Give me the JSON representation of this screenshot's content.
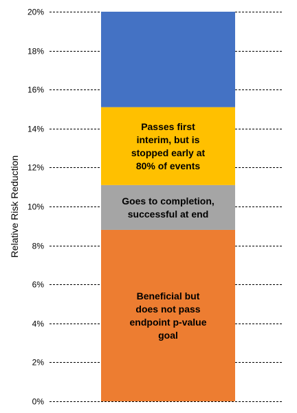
{
  "chart_data": {
    "type": "bar",
    "stacked": true,
    "ylabel": "Relative Risk Reduction",
    "ylim": [
      0,
      20
    ],
    "yticks": [
      "0%",
      "2%",
      "4%",
      "6%",
      "8%",
      "10%",
      "12%",
      "14%",
      "16%",
      "18%",
      "20%"
    ],
    "ytick_values": [
      0,
      2,
      4,
      6,
      8,
      10,
      12,
      14,
      16,
      18,
      20
    ],
    "grid": true,
    "legend": "none",
    "segments": [
      {
        "from": 0,
        "to": 8.8,
        "color": "#ED7D31",
        "label_lines": [
          "Beneficial but",
          "does not pass",
          "endpoint p-value",
          "goal"
        ]
      },
      {
        "from": 8.8,
        "to": 11.1,
        "color": "#A5A5A5",
        "label_lines": [
          "Goes to completion,",
          "successful at end"
        ]
      },
      {
        "from": 11.1,
        "to": 15.1,
        "color": "#FFC000",
        "label_lines": [
          "Passes first",
          "interim, but is",
          "stopped early at",
          "80% of events"
        ]
      },
      {
        "from": 15.1,
        "to": 20,
        "color": "#4472C4",
        "label_lines": []
      }
    ]
  }
}
